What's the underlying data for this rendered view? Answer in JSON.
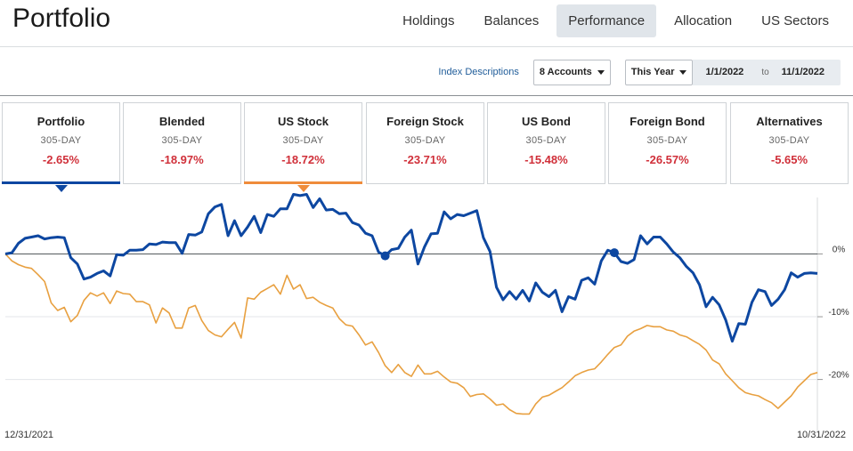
{
  "header": {
    "title": "Portfolio",
    "tabs": [
      {
        "label": "Holdings",
        "active": false
      },
      {
        "label": "Balances",
        "active": false
      },
      {
        "label": "Performance",
        "active": true
      },
      {
        "label": "Allocation",
        "active": false
      },
      {
        "label": "US Sectors",
        "active": false
      }
    ]
  },
  "controls": {
    "index_link": "Index Descriptions",
    "accounts_select": "8 Accounts",
    "range_select": "This Year",
    "date_from": "1/1/2022",
    "date_sep": "to",
    "date_to": "11/1/2022"
  },
  "cards": [
    {
      "title": "Portfolio",
      "period": "305-DAY",
      "value": "-2.65%",
      "selected": true,
      "accent": "#0d47a1"
    },
    {
      "title": "Blended",
      "period": "305-DAY",
      "value": "-18.97%",
      "selected": false
    },
    {
      "title": "US Stock",
      "period": "305-DAY",
      "value": "-18.72%",
      "selected": true,
      "accent": "#ef8c3b"
    },
    {
      "title": "Foreign Stock",
      "period": "305-DAY",
      "value": "-23.71%",
      "selected": false
    },
    {
      "title": "US Bond",
      "period": "305-DAY",
      "value": "-15.48%",
      "selected": false
    },
    {
      "title": "Foreign Bond",
      "period": "305-DAY",
      "value": "-26.57%",
      "selected": false
    },
    {
      "title": "Alternatives",
      "period": "305-DAY",
      "value": "-5.65%",
      "selected": false
    }
  ],
  "colors": {
    "portfolio_line": "#0d47a1",
    "benchmark_line": "#e8a040",
    "negative_value": "#d0303a",
    "active_tab_bg": "#e0e5ea"
  },
  "chart_data": {
    "type": "line",
    "x_start_label": "12/31/2021",
    "x_end_label": "10/31/2022",
    "y_ticks": [
      "0%",
      "-10%",
      "-20%"
    ],
    "ylim": [
      -27,
      9
    ],
    "grid": true,
    "series": [
      {
        "name": "Portfolio",
        "color": "#0d47a1",
        "values": [
          0.0,
          0.2,
          1.7,
          2.5,
          2.7,
          2.9,
          2.4,
          2.6,
          2.7,
          2.6,
          -0.6,
          -1.6,
          -4.0,
          -3.7,
          -3.1,
          -2.7,
          -3.5,
          -0.1,
          -0.2,
          0.6,
          0.6,
          0.7,
          1.6,
          1.5,
          1.9,
          1.8,
          1.8,
          0.1,
          3.1,
          3.0,
          3.5,
          6.4,
          7.5,
          7.9,
          2.9,
          5.3,
          2.9,
          4.3,
          6.0,
          3.4,
          6.3,
          6.0,
          7.2,
          7.2,
          9.5,
          9.3,
          9.5,
          7.4,
          8.8,
          7.0,
          7.1,
          6.4,
          6.5,
          5.0,
          4.6,
          3.3,
          2.9,
          0.3,
          -0.3,
          0.7,
          0.9,
          2.7,
          3.8,
          -1.6,
          1.1,
          3.2,
          3.3,
          6.7,
          5.6,
          6.3,
          6.1,
          6.5,
          6.9,
          2.6,
          0.4,
          -5.3,
          -7.3,
          -6.0,
          -7.2,
          -5.8,
          -7.5,
          -4.6,
          -6.1,
          -6.8,
          -5.8,
          -9.2,
          -6.8,
          -7.2,
          -4.2,
          -3.8,
          -4.8,
          -1.1,
          0.6,
          0.2,
          -1.2,
          -1.5,
          -0.9,
          2.9,
          1.6,
          2.7,
          2.7,
          1.6,
          0.3,
          -0.6,
          -2.0,
          -3.0,
          -4.9,
          -8.4,
          -6.9,
          -8.1,
          -10.5,
          -13.9,
          -11.1,
          -11.2,
          -7.7,
          -5.7,
          -6.0,
          -8.2,
          -7.2,
          -5.7,
          -3.0,
          -3.7,
          -3.1,
          -3.0,
          -3.1
        ]
      },
      {
        "name": "US Stock",
        "color": "#e8a040",
        "values": [
          0.0,
          -1.1,
          -1.7,
          -2.1,
          -2.3,
          -3.3,
          -4.4,
          -7.8,
          -9.0,
          -8.5,
          -10.8,
          -9.8,
          -7.4,
          -6.2,
          -6.7,
          -6.2,
          -7.9,
          -5.9,
          -6.3,
          -6.4,
          -7.6,
          -7.6,
          -8.1,
          -11.0,
          -8.6,
          -9.4,
          -11.8,
          -11.8,
          -8.6,
          -8.2,
          -10.6,
          -12.2,
          -12.9,
          -13.2,
          -12.0,
          -10.9,
          -13.4,
          -7.0,
          -7.2,
          -6.1,
          -5.5,
          -4.9,
          -6.4,
          -3.4,
          -5.6,
          -4.9,
          -7.1,
          -6.9,
          -7.7,
          -8.2,
          -8.6,
          -10.3,
          -11.3,
          -11.5,
          -12.9,
          -14.5,
          -14.0,
          -15.7,
          -17.8,
          -18.9,
          -17.6,
          -18.9,
          -19.5,
          -17.7,
          -19.1,
          -19.1,
          -18.7,
          -19.6,
          -20.4,
          -20.6,
          -21.3,
          -22.7,
          -22.4,
          -22.3,
          -23.1,
          -24.1,
          -23.9,
          -24.8,
          -25.4,
          -25.5,
          -25.5,
          -23.9,
          -22.8,
          -22.5,
          -21.9,
          -21.3,
          -20.4,
          -19.4,
          -18.9,
          -18.5,
          -18.3,
          -17.2,
          -16.0,
          -14.9,
          -14.5,
          -13.1,
          -12.3,
          -11.9,
          -11.4,
          -11.6,
          -11.6,
          -12.1,
          -12.3,
          -12.9,
          -13.2,
          -13.8,
          -14.4,
          -15.3,
          -16.9,
          -17.5,
          -19.1,
          -20.2,
          -21.3,
          -22.1,
          -22.4,
          -22.6,
          -23.2,
          -23.7,
          -24.6,
          -23.6,
          -22.6,
          -21.2,
          -20.2,
          -19.2,
          -18.9
        ]
      }
    ]
  }
}
